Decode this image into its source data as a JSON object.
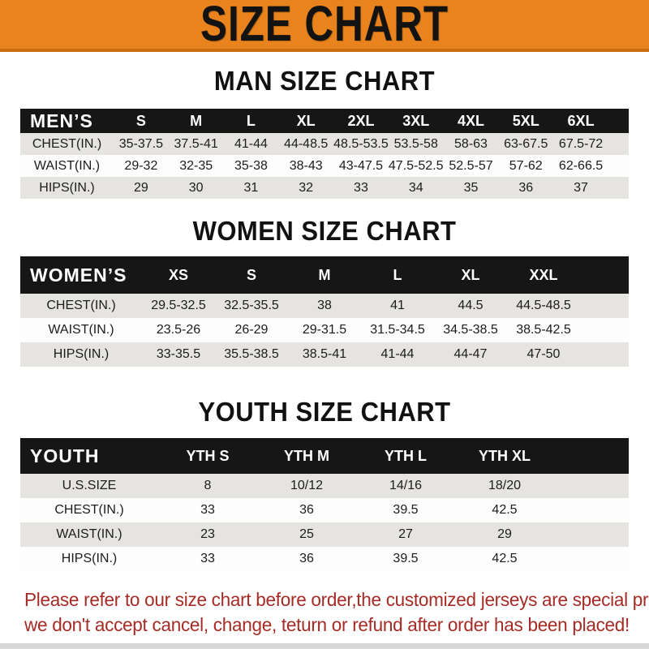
{
  "banner": {
    "title": "SIZE CHART"
  },
  "colors": {
    "banner_orange": "#E8831E",
    "banner_edge": "#C96F12",
    "band_black": "#161616",
    "row_gray": "#E6E4E1",
    "footer_red": "#A62B25",
    "bottom_bar": "#D8D8D8"
  },
  "tables": [
    {
      "id": "men",
      "heading": "MAN SIZE CHART",
      "header": {
        "label": "MEN’S",
        "columns": [
          "S",
          "M",
          "L",
          "XL",
          "2XL",
          "3XL",
          "4XL",
          "5XL",
          "6XL"
        ]
      },
      "rows": [
        {
          "label": "CHEST(IN.)",
          "values": [
            "35-37.5",
            "37.5-41",
            "41-44",
            "44-48.5",
            "48.5-53.5",
            "53.5-58",
            "58-63",
            "63-67.5",
            "67.5-72"
          ]
        },
        {
          "label": "WAIST(IN.)",
          "values": [
            "29-32",
            "32-35",
            "35-38",
            "38-43",
            "43-47.5",
            "47.5-52.5",
            "52.5-57",
            "57-62",
            "62-66.5"
          ]
        },
        {
          "label": "HIPS(IN.)",
          "values": [
            "29",
            "30",
            "31",
            "32",
            "33",
            "34",
            "35",
            "36",
            "37"
          ]
        }
      ]
    },
    {
      "id": "women",
      "heading": "WOMEN SIZE CHART",
      "header": {
        "label": "WOMEN’S",
        "columns": [
          "XS",
          "S",
          "M",
          "L",
          "XL",
          "XXL"
        ]
      },
      "rows": [
        {
          "label": "CHEST(IN.)",
          "values": [
            "29.5-32.5",
            "32.5-35.5",
            "38",
            "41",
            "44.5",
            "44.5-48.5"
          ]
        },
        {
          "label": "WAIST(IN.)",
          "values": [
            "23.5-26",
            "26-29",
            "29-31.5",
            "31.5-34.5",
            "34.5-38.5",
            "38.5-42.5"
          ]
        },
        {
          "label": "HIPS(IN.)",
          "values": [
            "33-35.5",
            "35.5-38.5",
            "38.5-41",
            "41-44",
            "44-47",
            "47-50"
          ]
        }
      ]
    },
    {
      "id": "youth",
      "heading": "YOUTH SIZE CHART",
      "header": {
        "label": "YOUTH",
        "columns": [
          "YTH S",
          "YTH M",
          "YTH L",
          "YTH XL"
        ]
      },
      "rows": [
        {
          "label": "U.S.SIZE",
          "values": [
            "8",
            "10/12",
            "14/16",
            "18/20"
          ]
        },
        {
          "label": "CHEST(IN.)",
          "values": [
            "33",
            "36",
            "39.5",
            "42.5"
          ]
        },
        {
          "label": "WAIST(IN.)",
          "values": [
            "23",
            "25",
            "27",
            "29"
          ]
        },
        {
          "label": "HIPS(IN.)",
          "values": [
            "33",
            "36",
            "39.5",
            "42.5"
          ]
        }
      ]
    }
  ],
  "footer": {
    "lines": [
      "Please refer to our size chart before order,the customized jerseys are special products,",
      "we don't accept cancel, change, teturn or refund after order has been placed!"
    ]
  }
}
